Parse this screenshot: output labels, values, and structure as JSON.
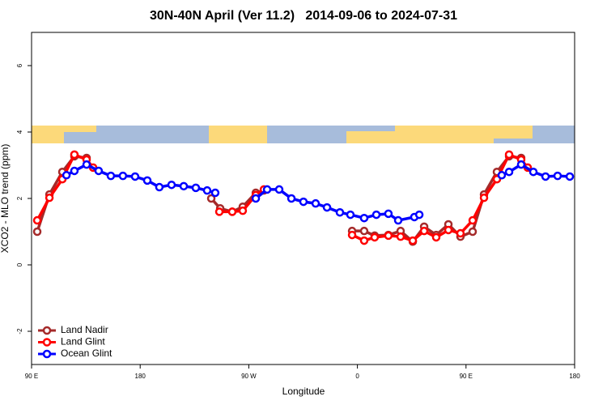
{
  "chart_data": {
    "type": "line",
    "title": "30N-40N April (Ver 11.2)   2014-09-06 to 2024-07-31",
    "x_label": "Longitude",
    "y_label": "XCO2 - MLO trend (ppm)",
    "xlim": [
      90,
      540
    ],
    "xticks": [
      {
        "value": 90,
        "label": "90 E"
      },
      {
        "value": 180,
        "label": "180"
      },
      {
        "value": 270,
        "label": "90 W"
      },
      {
        "value": 360,
        "label": "0"
      },
      {
        "value": 450,
        "label": "90 E"
      },
      {
        "value": 540,
        "label": "180"
      }
    ],
    "ylim": [
      -3,
      7
    ],
    "yticks": [
      -2,
      0,
      2,
      4,
      6
    ],
    "legend": "bottom-left",
    "series": [
      {
        "name": "Land Nadir",
        "color": "#a52a2a",
        "x": [
          94.7,
          104.8,
          115.5,
          125.5,
          135.6,
          null,
          238.9,
          246.3,
          256.3,
          265.0,
          275.8,
          282.5,
          null,
          355.6,
          365.6,
          374.3,
          385.7,
          395.8,
          405.9,
          415.3,
          425.3,
          435.4,
          445.4,
          455.5,
          464.9,
          475.6,
          485.7,
          495.7
        ],
        "values": [
          1.0,
          2.12,
          2.8,
          3.27,
          3.22,
          null,
          2.0,
          1.7,
          1.6,
          1.75,
          2.17,
          2.24,
          null,
          1.02,
          1.02,
          0.88,
          0.9,
          1.02,
          0.7,
          1.15,
          0.9,
          1.22,
          0.85,
          1.0,
          2.12,
          2.8,
          3.27,
          3.22
        ]
      },
      {
        "name": "Land Glint",
        "color": "#ff0000",
        "x": [
          94.7,
          104.8,
          115.5,
          125.5,
          135.6,
          141.0,
          null,
          245.6,
          256.3,
          265.0,
          275.8,
          282.5,
          null,
          355.6,
          365.6,
          374.3,
          385.7,
          395.8,
          405.9,
          415.3,
          425.3,
          435.4,
          445.4,
          455.5,
          464.9,
          475.6,
          485.7,
          495.7,
          501.1
        ],
        "values": [
          1.34,
          2.02,
          2.58,
          3.32,
          3.17,
          2.93,
          null,
          1.6,
          1.6,
          1.63,
          2.1,
          2.27,
          null,
          0.9,
          0.73,
          0.83,
          0.88,
          0.85,
          0.73,
          1.02,
          0.83,
          1.05,
          0.95,
          1.34,
          2.02,
          2.58,
          3.32,
          3.17,
          2.93
        ]
      },
      {
        "name": "Ocean Glint",
        "color": "#0000ff",
        "x": [
          118.9,
          125.5,
          135.6,
          145.6,
          155.7,
          165.7,
          175.8,
          185.9,
          195.9,
          206.0,
          216.1,
          226.1,
          235.5,
          242.2,
          null,
          275.8,
          285.2,
          295.2,
          305.3,
          315.3,
          325.4,
          334.8,
          345.5,
          354.2,
          365.6,
          375.7,
          385.7,
          393.8,
          407.2,
          411.3,
          null,
          479.6,
          485.7,
          495.7,
          505.8,
          515.9,
          525.9,
          536.0
        ],
        "values": [
          2.7,
          2.83,
          3.02,
          2.83,
          2.68,
          2.68,
          2.66,
          2.54,
          2.34,
          2.41,
          2.37,
          2.32,
          2.24,
          2.17,
          null,
          2.0,
          2.27,
          2.27,
          2.0,
          1.9,
          1.85,
          1.73,
          1.58,
          1.51,
          1.41,
          1.51,
          1.54,
          1.34,
          1.44,
          1.51,
          null,
          2.7,
          2.8,
          3.02,
          2.8,
          2.66,
          2.68,
          2.66
        ]
      }
    ]
  }
}
